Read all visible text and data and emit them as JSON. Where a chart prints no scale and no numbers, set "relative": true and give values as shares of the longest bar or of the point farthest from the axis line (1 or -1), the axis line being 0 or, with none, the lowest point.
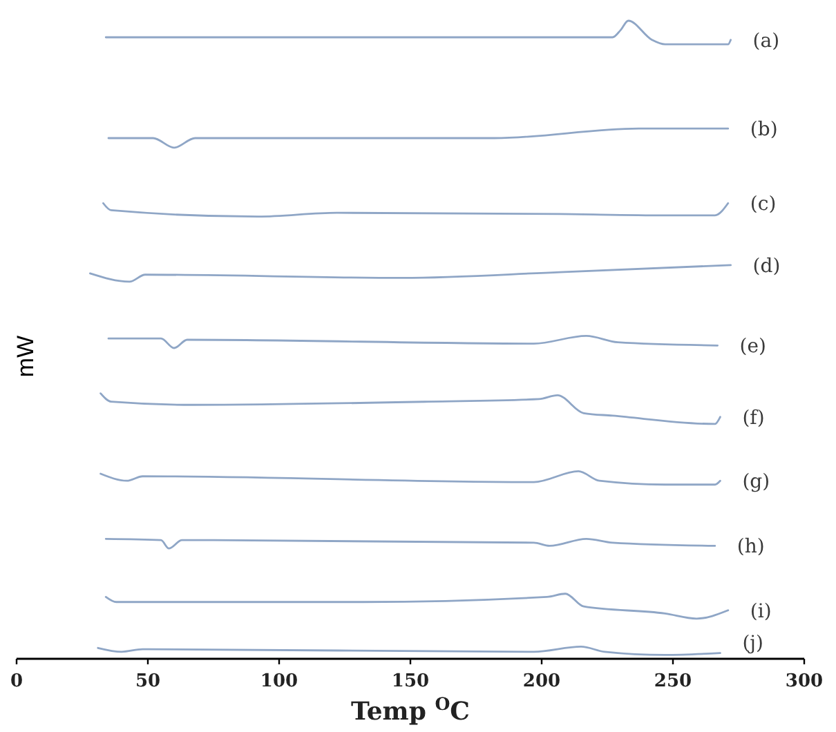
{
  "chart_data": {
    "type": "line",
    "relative": true,
    "xlabel": "Temp $^{O}$C",
    "ylabel": "mW",
    "xlim": [
      0,
      300
    ],
    "xticks": [
      0,
      50,
      100,
      150,
      200,
      250,
      300
    ],
    "series": [
      {
        "name": "(a)",
        "color": "#8fa6c6",
        "x": [
          34,
          227,
          230,
          233,
          242,
          247,
          271,
          272
        ],
        "values": [
          0.974,
          0.974,
          0.985,
          1,
          0.97,
          0.963,
          0.963,
          0.97
        ]
      },
      {
        "name": "(b)",
        "color": "#8fa6c6",
        "x": [
          35,
          52,
          60,
          68,
          182,
          237,
          271
        ],
        "values": [
          0.816,
          0.816,
          0.801,
          0.816,
          0.816,
          0.831,
          0.831
        ]
      },
      {
        "name": "(c)",
        "color": "#8fa6c6",
        "x": [
          33,
          36,
          92,
          122,
          207,
          247,
          266,
          271
        ],
        "values": [
          0.714,
          0.703,
          0.693,
          0.699,
          0.697,
          0.695,
          0.695,
          0.714
        ]
      },
      {
        "name": "(d)",
        "color": "#8fa6c6",
        "x": [
          28,
          43,
          49,
          147,
          207,
          272
        ],
        "values": [
          0.604,
          0.591,
          0.602,
          0.597,
          0.606,
          0.617
        ]
      },
      {
        "name": "(e)",
        "color": "#8fa6c6",
        "x": [
          35,
          55,
          60,
          65,
          197,
          217,
          229,
          267
        ],
        "values": [
          0.502,
          0.502,
          0.487,
          0.5,
          0.494,
          0.506,
          0.496,
          0.491
        ]
      },
      {
        "name": "(f)",
        "color": "#8fa6c6",
        "x": [
          32,
          36,
          67,
          157,
          199,
          206,
          216,
          227,
          266,
          268
        ],
        "values": [
          0.416,
          0.403,
          0.398,
          0.403,
          0.407,
          0.413,
          0.385,
          0.381,
          0.368,
          0.379
        ]
      },
      {
        "name": "(g)",
        "color": "#8fa6c6",
        "x": [
          32,
          42,
          48,
          197,
          214,
          222,
          247,
          266,
          268
        ],
        "values": [
          0.29,
          0.279,
          0.286,
          0.277,
          0.294,
          0.279,
          0.273,
          0.273,
          0.279
        ]
      },
      {
        "name": "(h)",
        "color": "#8fa6c6",
        "x": [
          34,
          55,
          58,
          63,
          197,
          203,
          217,
          227,
          266
        ],
        "values": [
          0.188,
          0.186,
          0.173,
          0.186,
          0.182,
          0.177,
          0.188,
          0.182,
          0.177
        ]
      },
      {
        "name": "(i)",
        "color": "#8fa6c6",
        "x": [
          34,
          38,
          132,
          202,
          209,
          216,
          247,
          259,
          271
        ],
        "values": [
          0.097,
          0.089,
          0.089,
          0.097,
          0.102,
          0.082,
          0.071,
          0.063,
          0.076
        ]
      },
      {
        "name": "(j)",
        "color": "#8fa6c6",
        "x": [
          31,
          40,
          48,
          197,
          215,
          224,
          247,
          268
        ],
        "values": [
          0.017,
          0.011,
          0.015,
          0.011,
          0.019,
          0.011,
          0.006,
          0.009
        ]
      }
    ]
  }
}
